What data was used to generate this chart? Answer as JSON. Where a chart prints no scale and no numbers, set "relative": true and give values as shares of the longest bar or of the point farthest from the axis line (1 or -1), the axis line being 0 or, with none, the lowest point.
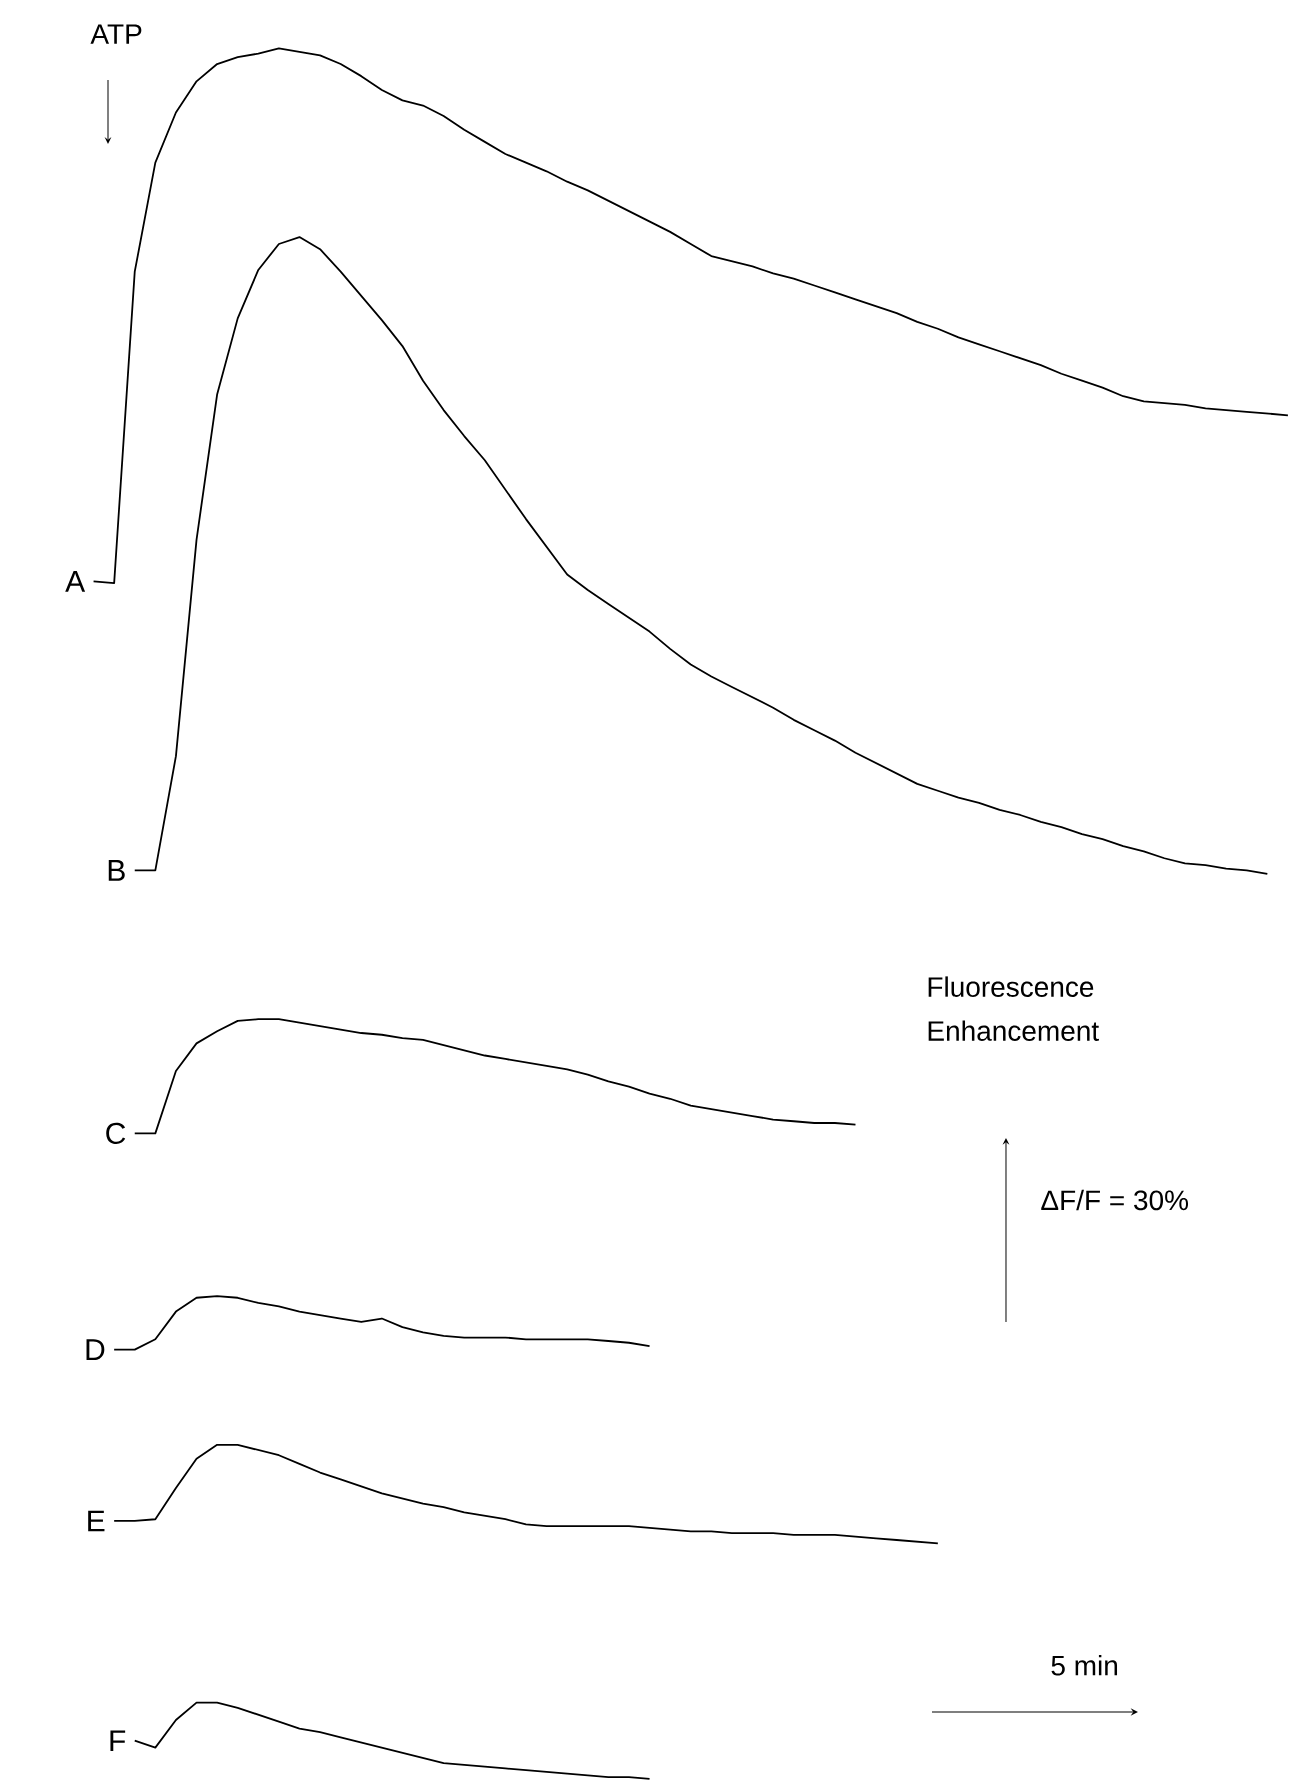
{
  "chart_data": {
    "type": "line",
    "relative": true,
    "categories": [
      null,
      null,
      null,
      null,
      null,
      null,
      null,
      null,
      null,
      null,
      null,
      null,
      null,
      null,
      null,
      null,
      null,
      null,
      null,
      null,
      null,
      null,
      null,
      null,
      null,
      null,
      null,
      null,
      null,
      null,
      null,
      null,
      null,
      null,
      null,
      null,
      null,
      null,
      null,
      null,
      null,
      null,
      null,
      null,
      null,
      null,
      null,
      null,
      null,
      null,
      null,
      null,
      null,
      null,
      null,
      null,
      null,
      null,
      null
    ],
    "annotations": [
      "ATP",
      "Fluorescence Enhancement",
      "ΔF/F = 30%",
      "5 min"
    ],
    "series": [
      {
        "name": "A",
        "color": "#000000",
        "values": [
          0.692,
          0.691,
          0.871,
          0.934,
          0.963,
          0.981,
          0.991,
          0.995,
          0.997,
          1.0,
          0.998,
          0.996,
          0.991,
          0.984,
          0.976,
          0.97,
          0.967,
          0.961,
          0.953,
          0.946,
          0.939,
          0.934,
          0.929,
          0.923,
          0.918,
          0.912,
          0.906,
          0.9,
          0.894,
          0.887,
          0.88,
          0.877,
          0.874,
          0.87,
          0.867,
          0.863,
          0.859,
          0.855,
          0.851,
          0.847,
          0.842,
          0.838,
          0.833,
          0.829,
          0.825,
          0.821,
          0.817,
          0.812,
          0.808,
          0.804,
          0.799,
          0.796,
          0.795,
          0.794,
          0.792,
          0.791,
          0.79,
          0.789,
          0.788
        ]
      },
      {
        "name": "B",
        "color": "#000000",
        "values": [
          null,
          null,
          0.525,
          0.525,
          0.591,
          0.716,
          0.8,
          0.844,
          0.872,
          0.887,
          0.891,
          0.884,
          0.871,
          0.857,
          0.843,
          0.828,
          0.808,
          0.791,
          0.776,
          0.762,
          0.745,
          0.728,
          0.712,
          0.696,
          0.687,
          0.679,
          0.671,
          0.663,
          0.653,
          0.644,
          0.637,
          0.631,
          0.625,
          0.619,
          0.612,
          0.606,
          0.6,
          0.593,
          0.587,
          0.581,
          0.575,
          0.571,
          0.567,
          0.564,
          0.56,
          0.557,
          0.553,
          0.55,
          0.546,
          0.543,
          0.539,
          0.536,
          0.532,
          0.529,
          0.528,
          0.526,
          0.525,
          0.523,
          null
        ]
      },
      {
        "name": "C",
        "color": "#000000",
        "values": [
          null,
          null,
          0.373,
          0.373,
          0.409,
          0.425,
          0.432,
          0.438,
          0.439,
          0.439,
          0.437,
          0.435,
          0.433,
          0.431,
          0.43,
          0.428,
          0.427,
          0.424,
          0.421,
          0.418,
          0.416,
          0.414,
          0.412,
          0.41,
          0.407,
          0.403,
          0.4,
          0.396,
          0.393,
          0.389,
          0.387,
          0.385,
          0.383,
          0.381,
          0.38,
          0.379,
          0.379,
          0.378,
          null,
          null,
          null,
          null,
          null,
          null,
          null,
          null,
          null,
          null,
          null,
          null,
          null,
          null,
          null,
          null,
          null,
          null,
          null,
          null,
          null
        ]
      },
      {
        "name": "D",
        "color": "#000000",
        "values": [
          null,
          0.248,
          0.248,
          0.254,
          0.27,
          0.278,
          0.279,
          0.278,
          0.275,
          0.273,
          0.27,
          0.268,
          0.266,
          0.264,
          0.266,
          0.261,
          0.258,
          0.256,
          0.255,
          0.255,
          0.255,
          0.254,
          0.254,
          0.254,
          0.254,
          0.253,
          0.252,
          0.25,
          null,
          null,
          null,
          null,
          null,
          null,
          null,
          null,
          null,
          null,
          null,
          null,
          null,
          null,
          null,
          null,
          null,
          null,
          null,
          null,
          null,
          null,
          null,
          null,
          null,
          null,
          null,
          null,
          null,
          null,
          null
        ]
      },
      {
        "name": "E",
        "color": "#000000",
        "values": [
          null,
          0.149,
          0.149,
          0.15,
          0.168,
          0.185,
          0.193,
          0.193,
          0.19,
          0.187,
          0.182,
          0.177,
          0.173,
          0.169,
          0.165,
          0.162,
          0.159,
          0.157,
          0.154,
          0.152,
          0.15,
          0.147,
          0.146,
          0.146,
          0.146,
          0.146,
          0.146,
          0.145,
          0.144,
          0.143,
          0.143,
          0.142,
          0.142,
          0.142,
          0.141,
          0.141,
          0.141,
          0.14,
          0.139,
          0.138,
          0.137,
          0.136,
          null,
          null,
          null,
          null,
          null,
          null,
          null,
          null,
          null,
          null,
          null,
          null,
          null,
          null,
          null,
          null,
          null
        ]
      },
      {
        "name": "F",
        "color": "#000000",
        "values": [
          null,
          null,
          0.022,
          0.018,
          0.034,
          0.044,
          0.044,
          0.041,
          0.037,
          0.033,
          0.029,
          0.027,
          0.024,
          0.021,
          0.018,
          0.015,
          0.012,
          0.009,
          0.008,
          0.007,
          0.006,
          0.005,
          0.004,
          0.003,
          0.002,
          0.001,
          0.001,
          0.0,
          null,
          null,
          null,
          null,
          null,
          null,
          null,
          null,
          null,
          null,
          null,
          null,
          null,
          null,
          null,
          null,
          null,
          null,
          null,
          null,
          null,
          null,
          null,
          null,
          null,
          null,
          null,
          null,
          null,
          null,
          null
        ]
      }
    ]
  }
}
